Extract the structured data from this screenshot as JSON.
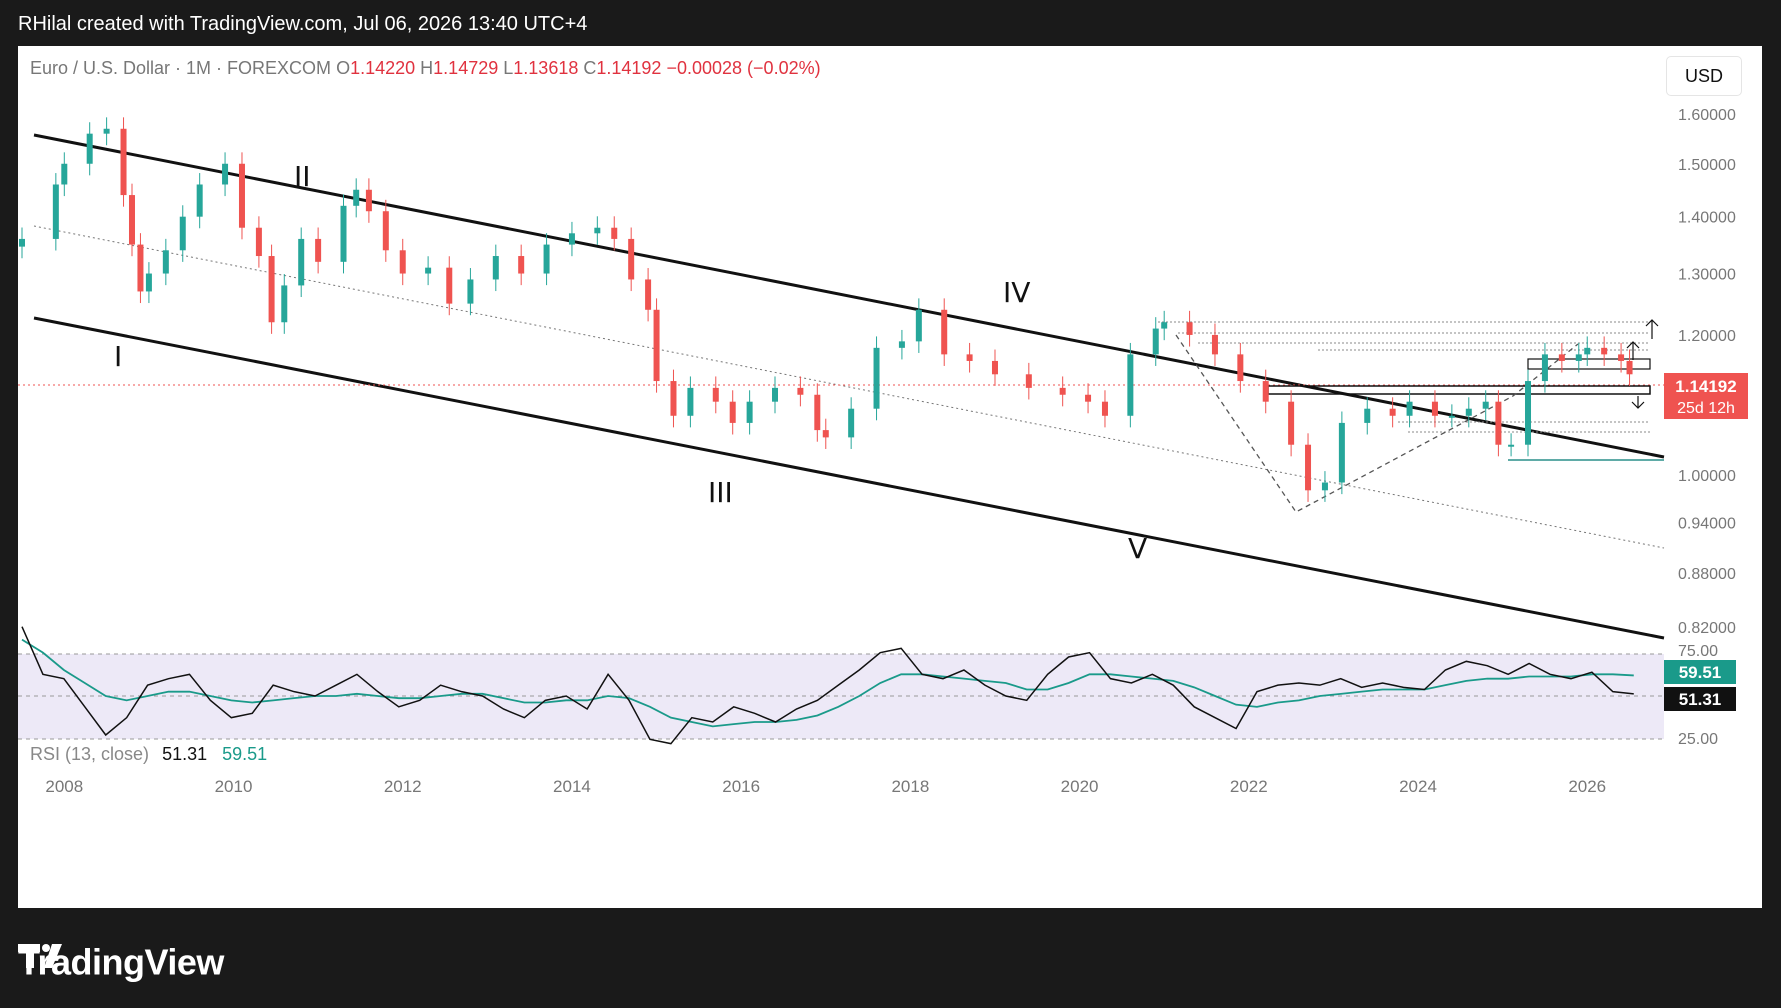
{
  "header": {
    "attribution": "RHilal created with TradingView.com, Jul 06, 2026 13:40 UTC+4"
  },
  "symbol": {
    "name": "Euro / U.S. Dollar · 1M · FOREXCOM",
    "open_label": "O",
    "open": "1.14220",
    "high_label": "H",
    "high": "1.14729",
    "low_label": "L",
    "low": "1.13618",
    "close_label": "C",
    "close": "1.14192",
    "change": "−0.00028 (−0.02%)"
  },
  "currency_button": "USD",
  "price_axis": {
    "ticks": [
      "1.60000",
      "1.50000",
      "1.40000",
      "1.30000",
      "1.20000",
      "1.00000",
      "0.94000",
      "0.88000",
      "0.82000"
    ],
    "current_price": "1.14192",
    "countdown": "25d 12h"
  },
  "time_axis": {
    "ticks": [
      "2008",
      "2010",
      "2012",
      "2014",
      "2016",
      "2018",
      "2020",
      "2022",
      "2024",
      "2026"
    ]
  },
  "rsi": {
    "label": "RSI (13, close)",
    "value": "51.31",
    "ma_value": "59.51",
    "axis_ticks": [
      "75.00",
      "25.00"
    ]
  },
  "colors": {
    "up": "#26a69a",
    "down": "#ef5350",
    "rsi_line": "#111111",
    "rsi_ma": "#1a9a8a",
    "rsi_band": "#ede9f7"
  },
  "wave_labels": [
    "I",
    "II",
    "III",
    "IV",
    "V"
  ],
  "chart_data": {
    "type": "candlestick",
    "title": "Euro / U.S. Dollar · 1M · FOREXCOM",
    "xlim": [
      2007.5,
      2026.6
    ],
    "ylim": [
      0.8,
      1.66
    ],
    "y_scale": "log",
    "series": [
      {
        "name": "Euro / U.S. Dollar",
        "x": [
          2007.5,
          2007.9,
          2008.0,
          2008.3,
          2008.5,
          2008.7,
          2008.8,
          2008.9,
          2009.0,
          2009.2,
          2009.4,
          2009.6,
          2009.9,
          2010.1,
          2010.3,
          2010.45,
          2010.6,
          2010.8,
          2011.0,
          2011.3,
          2011.45,
          2011.6,
          2011.8,
          2012.0,
          2012.3,
          2012.55,
          2012.8,
          2013.1,
          2013.4,
          2013.7,
          2014.0,
          2014.3,
          2014.5,
          2014.7,
          2014.9,
          2015.0,
          2015.2,
          2015.4,
          2015.7,
          2015.9,
          2016.1,
          2016.4,
          2016.7,
          2016.9,
          2017.0,
          2017.3,
          2017.6,
          2017.9,
          2018.1,
          2018.4,
          2018.7,
          2019.0,
          2019.4,
          2019.8,
          2020.1,
          2020.3,
          2020.6,
          2020.9,
          2021.0,
          2021.3,
          2021.6,
          2021.9,
          2022.2,
          2022.5,
          2022.7,
          2022.9,
          2023.1,
          2023.4,
          2023.7,
          2023.9,
          2024.2,
          2024.4,
          2024.6,
          2024.8,
          2024.95,
          2025.1,
          2025.3,
          2025.5,
          2025.7,
          2025.9,
          2026.0,
          2026.2,
          2026.4,
          2026.5
        ],
        "values": [
          1.36,
          1.46,
          1.5,
          1.56,
          1.57,
          1.44,
          1.35,
          1.27,
          1.3,
          1.34,
          1.4,
          1.46,
          1.5,
          1.38,
          1.33,
          1.22,
          1.28,
          1.36,
          1.32,
          1.42,
          1.45,
          1.41,
          1.34,
          1.3,
          1.31,
          1.25,
          1.29,
          1.33,
          1.3,
          1.35,
          1.37,
          1.38,
          1.36,
          1.29,
          1.24,
          1.13,
          1.08,
          1.12,
          1.1,
          1.07,
          1.1,
          1.12,
          1.11,
          1.06,
          1.05,
          1.09,
          1.18,
          1.19,
          1.24,
          1.17,
          1.16,
          1.14,
          1.12,
          1.11,
          1.1,
          1.08,
          1.17,
          1.21,
          1.22,
          1.2,
          1.17,
          1.13,
          1.1,
          1.04,
          0.98,
          0.99,
          1.07,
          1.09,
          1.08,
          1.1,
          1.08,
          1.08,
          1.09,
          1.1,
          1.04,
          1.04,
          1.13,
          1.17,
          1.16,
          1.17,
          1.18,
          1.17,
          1.16,
          1.14
        ]
      }
    ],
    "rsi_series": {
      "name": "RSI (13, close)",
      "ylim": [
        20,
        80
      ],
      "bands": [
        70,
        50,
        30
      ],
      "rsi": [
        82,
        60,
        58,
        45,
        32,
        40,
        55,
        58,
        60,
        48,
        40,
        42,
        55,
        52,
        50,
        55,
        60,
        52,
        45,
        48,
        55,
        52,
        50,
        44,
        40,
        48,
        50,
        44,
        60,
        48,
        30,
        28,
        40,
        38,
        45,
        42,
        38,
        44,
        48,
        55,
        62,
        70,
        72,
        60,
        58,
        62,
        55,
        50,
        48,
        60,
        68,
        70,
        58,
        56,
        60,
        55,
        45,
        40,
        35,
        52,
        55,
        56,
        55,
        58,
        54,
        56,
        54,
        53,
        62,
        66,
        64,
        60,
        65,
        60,
        58,
        61,
        52,
        51
      ],
      "ma": [
        76,
        70,
        62,
        56,
        50,
        48,
        50,
        52,
        52,
        50,
        48,
        47,
        48,
        49,
        50,
        50,
        51,
        50,
        49,
        49,
        50,
        51,
        51,
        49,
        47,
        47,
        48,
        48,
        50,
        49,
        45,
        40,
        38,
        36,
        37,
        38,
        38,
        39,
        41,
        45,
        50,
        56,
        60,
        60,
        59,
        58,
        57,
        56,
        53,
        53,
        56,
        60,
        60,
        59,
        58,
        57,
        54,
        50,
        46,
        45,
        47,
        48,
        50,
        51,
        52,
        53,
        53,
        53,
        55,
        57,
        58,
        58,
        59,
        59,
        59,
        60,
        60,
        59.5
      ]
    }
  }
}
